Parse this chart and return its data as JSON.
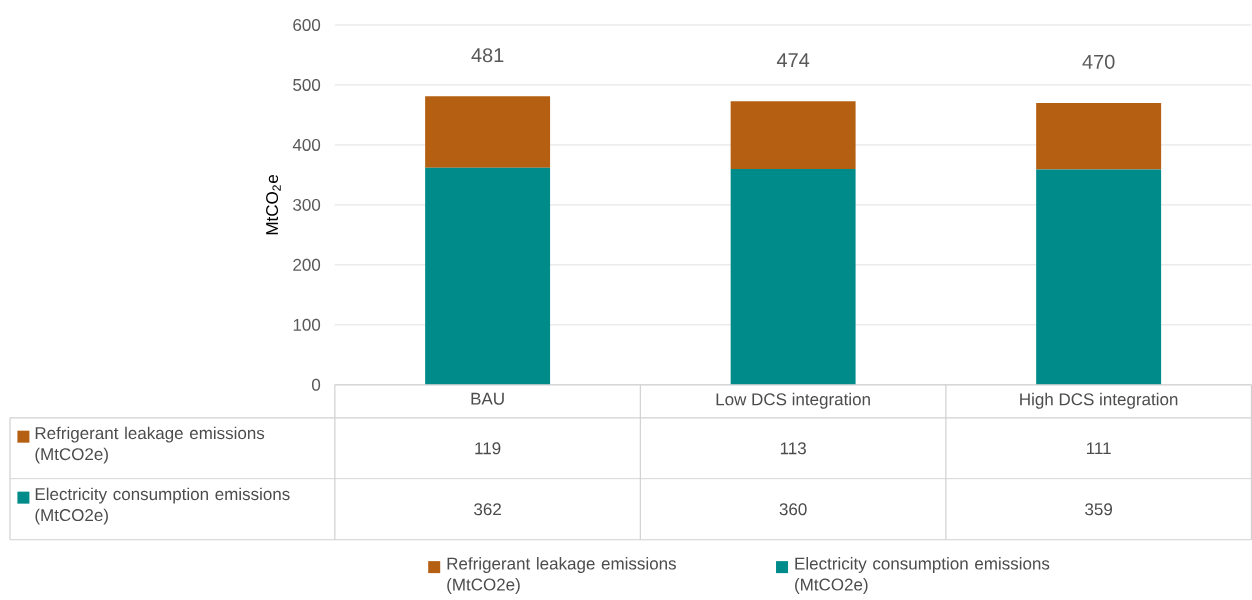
{
  "chart_data": {
    "type": "bar",
    "stacked": true,
    "ylabel": "MtCO$_{2}$e",
    "categories": [
      "BAU",
      "Low DCS integration",
      "High DCS integration"
    ],
    "series": [
      {
        "name": "Electricity consumption emissions (MtCO2e)",
        "color": "#008b8b",
        "values": [
          362,
          360,
          359
        ]
      },
      {
        "name": "Refrigerant leakage emissions (MtCO2e)",
        "color": "#b45f12",
        "values": [
          119,
          113,
          111
        ]
      }
    ],
    "totals": [
      "481",
      "474",
      "470"
    ],
    "ylim": [
      0,
      600
    ],
    "yticks": [
      0,
      100,
      200,
      300,
      400,
      500,
      600
    ],
    "grid": "y",
    "legend": "bottom",
    "data_labels": true
  }
}
